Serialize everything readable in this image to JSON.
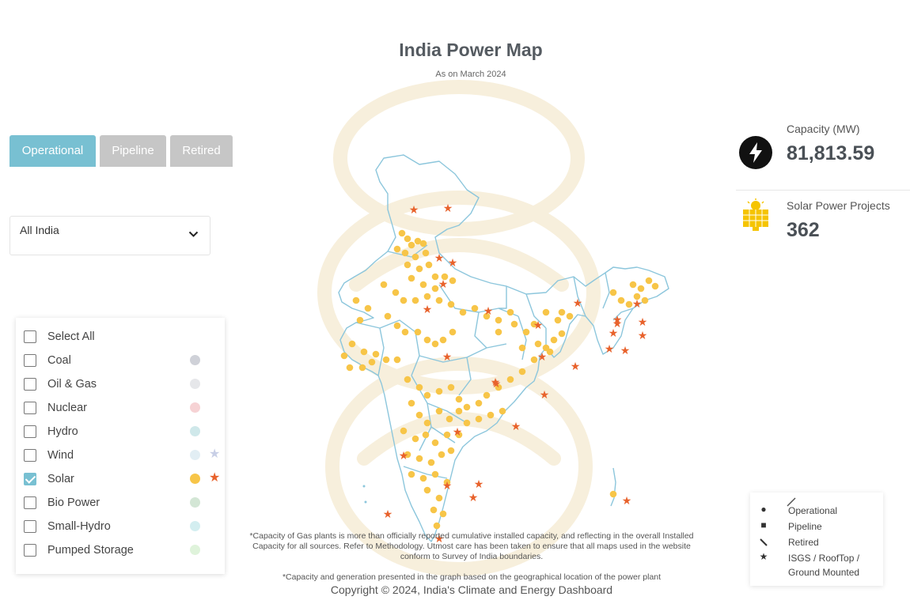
{
  "header": {
    "title": "India Power Map",
    "subtitle": "As on March 2024"
  },
  "tabs": [
    {
      "label": "Operational",
      "active": true
    },
    {
      "label": "Pipeline",
      "active": false
    },
    {
      "label": "Retired",
      "active": false
    }
  ],
  "region_select": {
    "value": "All India"
  },
  "fuel_legend": [
    {
      "label": "Select All",
      "checked": false,
      "color": ""
    },
    {
      "label": "Coal",
      "checked": false,
      "color": "#cfd1d8"
    },
    {
      "label": "Oil & Gas",
      "checked": false,
      "color": "#e6e7ea"
    },
    {
      "label": "Nuclear",
      "checked": false,
      "color": "#f6d2d4"
    },
    {
      "label": "Hydro",
      "checked": false,
      "color": "#cfe8ea"
    },
    {
      "label": "Wind",
      "checked": false,
      "color": "#e2eef4",
      "star_color": "#c8cfe6"
    },
    {
      "label": "Solar",
      "checked": true,
      "color": "#f7c548",
      "star_color": "#e8622c"
    },
    {
      "label": "Bio Power",
      "checked": false,
      "color": "#d3e6d5"
    },
    {
      "label": "Small-Hydro",
      "checked": false,
      "color": "#d3eef0"
    },
    {
      "label": "Pumped Storage",
      "checked": false,
      "color": "#dff3db"
    }
  ],
  "stats": {
    "capacity_label": "Capacity (MW)",
    "capacity_value": "81,813.59",
    "projects_label": "Solar Power Projects",
    "projects_value": "362"
  },
  "notes": {
    "gas_note": "*Capacity of Gas plants is more than officially reported cumulative installed capacity, and reflecting in the overall Installed Capacity for all sources. Refer to Methodology. Utmost care has been taken to ensure that all maps used in the website conform to Survey of India boundaries.",
    "graph_note": "*Capacity and generation presented in the graph based on the geographical location of the power plant",
    "copyright": "Copyright © 2024, India's Climate and Energy Dashboard"
  },
  "status_key": [
    {
      "symbol": "circle",
      "label": "Operational"
    },
    {
      "symbol": "square",
      "label": "Pipeline"
    },
    {
      "symbol": "line",
      "label": "Retired"
    },
    {
      "symbol": "star",
      "label": "ISGS / RoofTop / Ground Mounted"
    }
  ],
  "icons": {
    "capacity": "lightning-bolt-icon",
    "projects": "solar-panel-icon",
    "dropdown": "chevron-down-icon"
  },
  "colors": {
    "accent": "#78c0d2",
    "tab_inactive": "#c6c6c6",
    "solar_dot": "#f7c548",
    "solar_star": "#e8622c",
    "map_border": "#8cc6dc"
  }
}
